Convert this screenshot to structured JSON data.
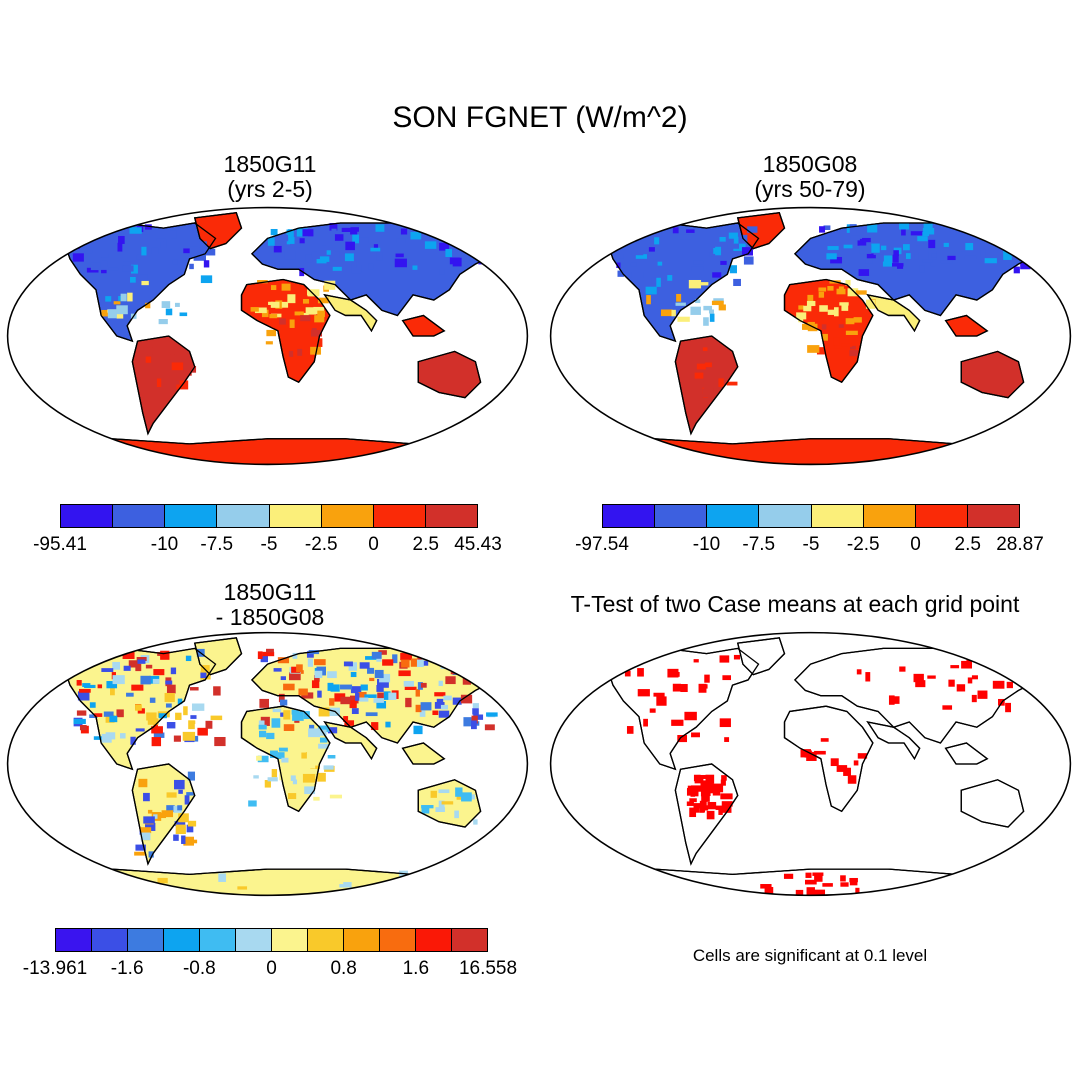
{
  "title": "SON FGNET (W/m^2)",
  "panels": [
    {
      "title_line1": "1850G11",
      "title_line2": "(yrs 2-5)",
      "map_style": "field_a"
    },
    {
      "title_line1": "1850G08",
      "title_line2": "(yrs 50-79)",
      "map_style": "field_b"
    },
    {
      "title_line1": "1850G11",
      "title_line2": "- 1850G08",
      "map_style": "difference"
    },
    {
      "title_line1": "T-Test of two Case means at each grid point",
      "title_line2": "",
      "map_style": "significance"
    }
  ],
  "colorbars": [
    {
      "colors": [
        "#3314f0",
        "#3d60e0",
        "#0da4f0",
        "#95cdeb",
        "#fbef7a",
        "#f9a20d",
        "#fa2a07",
        "#d2302a"
      ],
      "labels": [
        "-95.41",
        "-10",
        "-7.5",
        "-5",
        "-2.5",
        "0",
        "2.5",
        "45.43"
      ]
    },
    {
      "colors": [
        "#3314f0",
        "#3d60e0",
        "#0da4f0",
        "#95cdeb",
        "#fbef7a",
        "#f9a20d",
        "#fa2a07",
        "#d2302a"
      ],
      "labels": [
        "-97.54",
        "-10",
        "-7.5",
        "-5",
        "-2.5",
        "0",
        "2.5",
        "28.87"
      ]
    },
    {
      "colors": [
        "#3a14ef",
        "#3b4fe6",
        "#3d7be0",
        "#0da4f0",
        "#3fbcf2",
        "#a8d9f0",
        "#fbf48e",
        "#f9c92a",
        "#f9a20d",
        "#f86c0f",
        "#fa1806",
        "#d2302a"
      ],
      "labels": [
        "-13.961",
        "-1.6",
        "-0.8",
        "0",
        "0.8",
        "1.6",
        "16.558"
      ]
    }
  ],
  "significance_note": "Cells are significant at 0.1 level",
  "significance_color": "#ff0000"
}
